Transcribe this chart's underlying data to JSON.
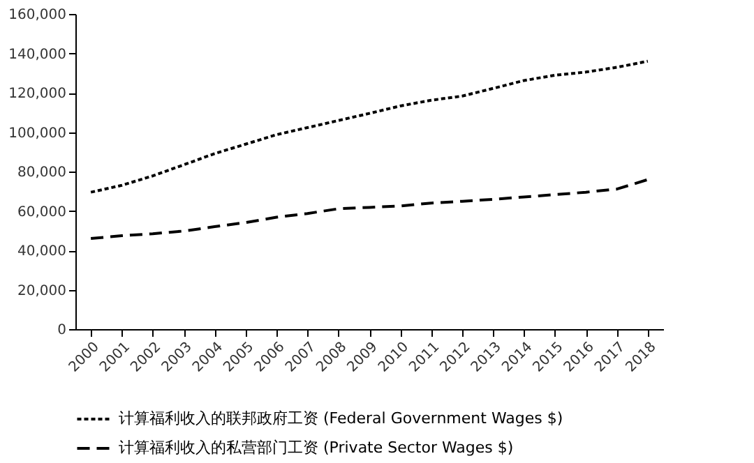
{
  "chart_data": {
    "type": "line",
    "categories": [
      "2000",
      "2001",
      "2002",
      "2003",
      "2004",
      "2005",
      "2006",
      "2007",
      "2008",
      "2009",
      "2010",
      "2011",
      "2012",
      "2013",
      "2014",
      "2015",
      "2016",
      "2017",
      "2018"
    ],
    "series": [
      {
        "name": "计算福利收入的联邦政府工资 (Federal Government Wages $)",
        "color": "#000000",
        "line_style": "dotted",
        "values": [
          69500,
          73000,
          77800,
          83400,
          89100,
          93900,
          98700,
          102300,
          105900,
          109500,
          113300,
          116200,
          118300,
          122200,
          126200,
          128900,
          130500,
          132900,
          136000
        ]
      },
      {
        "name": "计算福利收入的私营部门工资 (Private Sector Wages $)",
        "color": "#000000",
        "line_style": "dashed",
        "values": [
          46000,
          47400,
          48400,
          49800,
          52000,
          54100,
          56800,
          58700,
          61100,
          61800,
          62500,
          64000,
          64900,
          65900,
          67100,
          68300,
          69500,
          71100,
          75900
        ]
      }
    ],
    "ylim": [
      0,
      160000
    ],
    "yticks": [
      0,
      {
        "value": 20000,
        "label": "20,000"
      },
      {
        "value": 40000,
        "label": "40,000"
      },
      {
        "value": 60000,
        "label": "60,000"
      },
      {
        "value": 80000,
        "label": "80,000"
      },
      {
        "value": 100000,
        "label": "100,000"
      },
      {
        "value": 120000,
        "label": "120,000"
      },
      {
        "value": 140000,
        "label": "140,000"
      },
      {
        "value": 160000,
        "label": "160,000"
      }
    ],
    "grid": false,
    "legend": "bottom",
    "marker": "none"
  }
}
